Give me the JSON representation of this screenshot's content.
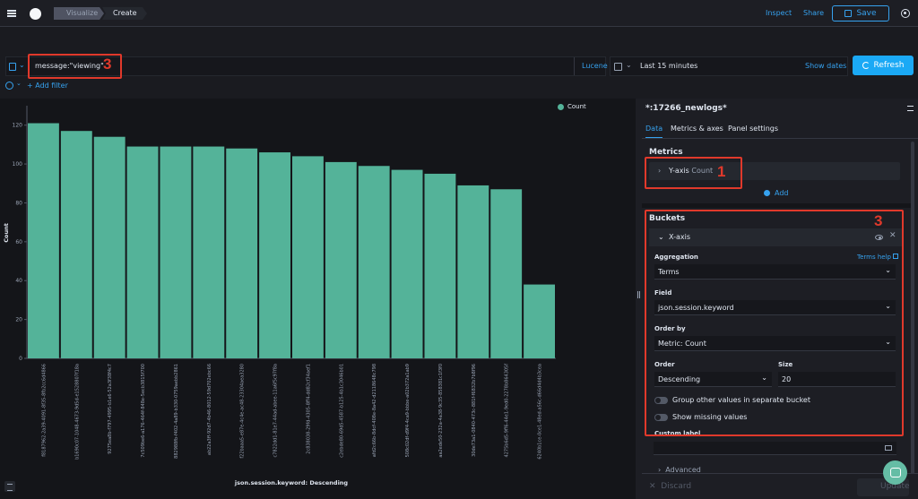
{
  "header": {
    "breadcrumbs": [
      "Visualize",
      "Create"
    ],
    "inspect": "Inspect",
    "share": "Share",
    "save": "Save"
  },
  "query": {
    "text": "message:\"viewing\"",
    "language": "Lucene",
    "time_range": "Last 15 minutes",
    "show_dates": "Show dates",
    "refresh": "Refresh",
    "add_filter": "+ Add filter"
  },
  "annotations": {
    "query_label": "3",
    "metrics_label": "1",
    "buckets_label": "3",
    "color": "#e0392b"
  },
  "chart_data": {
    "type": "bar",
    "ylabel": "Count",
    "xlabel": "json.session.keyword: Descending",
    "legend": [
      "Count"
    ],
    "legend_placement": "top-right",
    "color": "#54b399",
    "ylim": [
      0,
      130
    ],
    "yticks": [
      0,
      20,
      40,
      60,
      80,
      100,
      120
    ],
    "categories": [
      "f8187962-2a39-4091-8f35-8fb2cc6d4866",
      "b1690c07-1048-4673-9d5d-e1528807f18a",
      "9275ea8b-f797-4995-b1e6-52a3f38f4c7",
      "7c509be6-a176-464f-848e-5ecb3815f700",
      "882988fb-f402-4a89-b330-0759aebb2861",
      "ab22a3ff-92d7-4b46-8012-59d702ebc66",
      "f22baaa5-e87e-4c4e-ac48-23304aea3280",
      "c7822dd1-81e7-44ad-abee-11a6f5c97f8a",
      "2c838038-29fd-4305-8ff4-dd82cf34aef1",
      "c2ebde80-69d5-4587-b125-4b1c3046b01",
      "afd2c66b-8dcf-408e-8a42-d2118648c798",
      "508c02df-d9f4-4ca9-bbbe-a02b372a1ab9",
      "aa2ede50-232a-4a38-9c35-858381c1f3f0",
      "30de73a1-0840-473c-881f-f6832b7b8f96",
      "4275b6d5-9ff6-44e1-9ed0-2278b864305f",
      "6240b1ce-0ce1-48ed-a56c-d66d4d4b3cea"
    ],
    "values": [
      121,
      117,
      114,
      109,
      109,
      109,
      108,
      106,
      104,
      101,
      99,
      97,
      95,
      89,
      87,
      38
    ]
  },
  "sidebar": {
    "title": "*:17266_newlogs*",
    "tabs": [
      "Data",
      "Metrics & axes",
      "Panel settings"
    ],
    "metrics": {
      "title": "Metrics",
      "axis_label": "Y-axis",
      "axis_value": "Count",
      "add": "Add"
    },
    "buckets": {
      "title": "Buckets",
      "axis_label": "X-axis",
      "aggregation_label": "Aggregation",
      "aggregation_help": "Terms help",
      "aggregation_value": "Terms",
      "field_label": "Field",
      "field_value": "json.session.keyword",
      "order_by_label": "Order by",
      "order_by_value": "Metric: Count",
      "order_label": "Order",
      "order_value": "Descending",
      "size_label": "Size",
      "size_value": "20",
      "group_other": "Group other values in separate bucket",
      "show_missing": "Show missing values",
      "custom_label": "Custom label",
      "advanced": "Advanced"
    },
    "discard": "Discard",
    "update": "Update"
  }
}
